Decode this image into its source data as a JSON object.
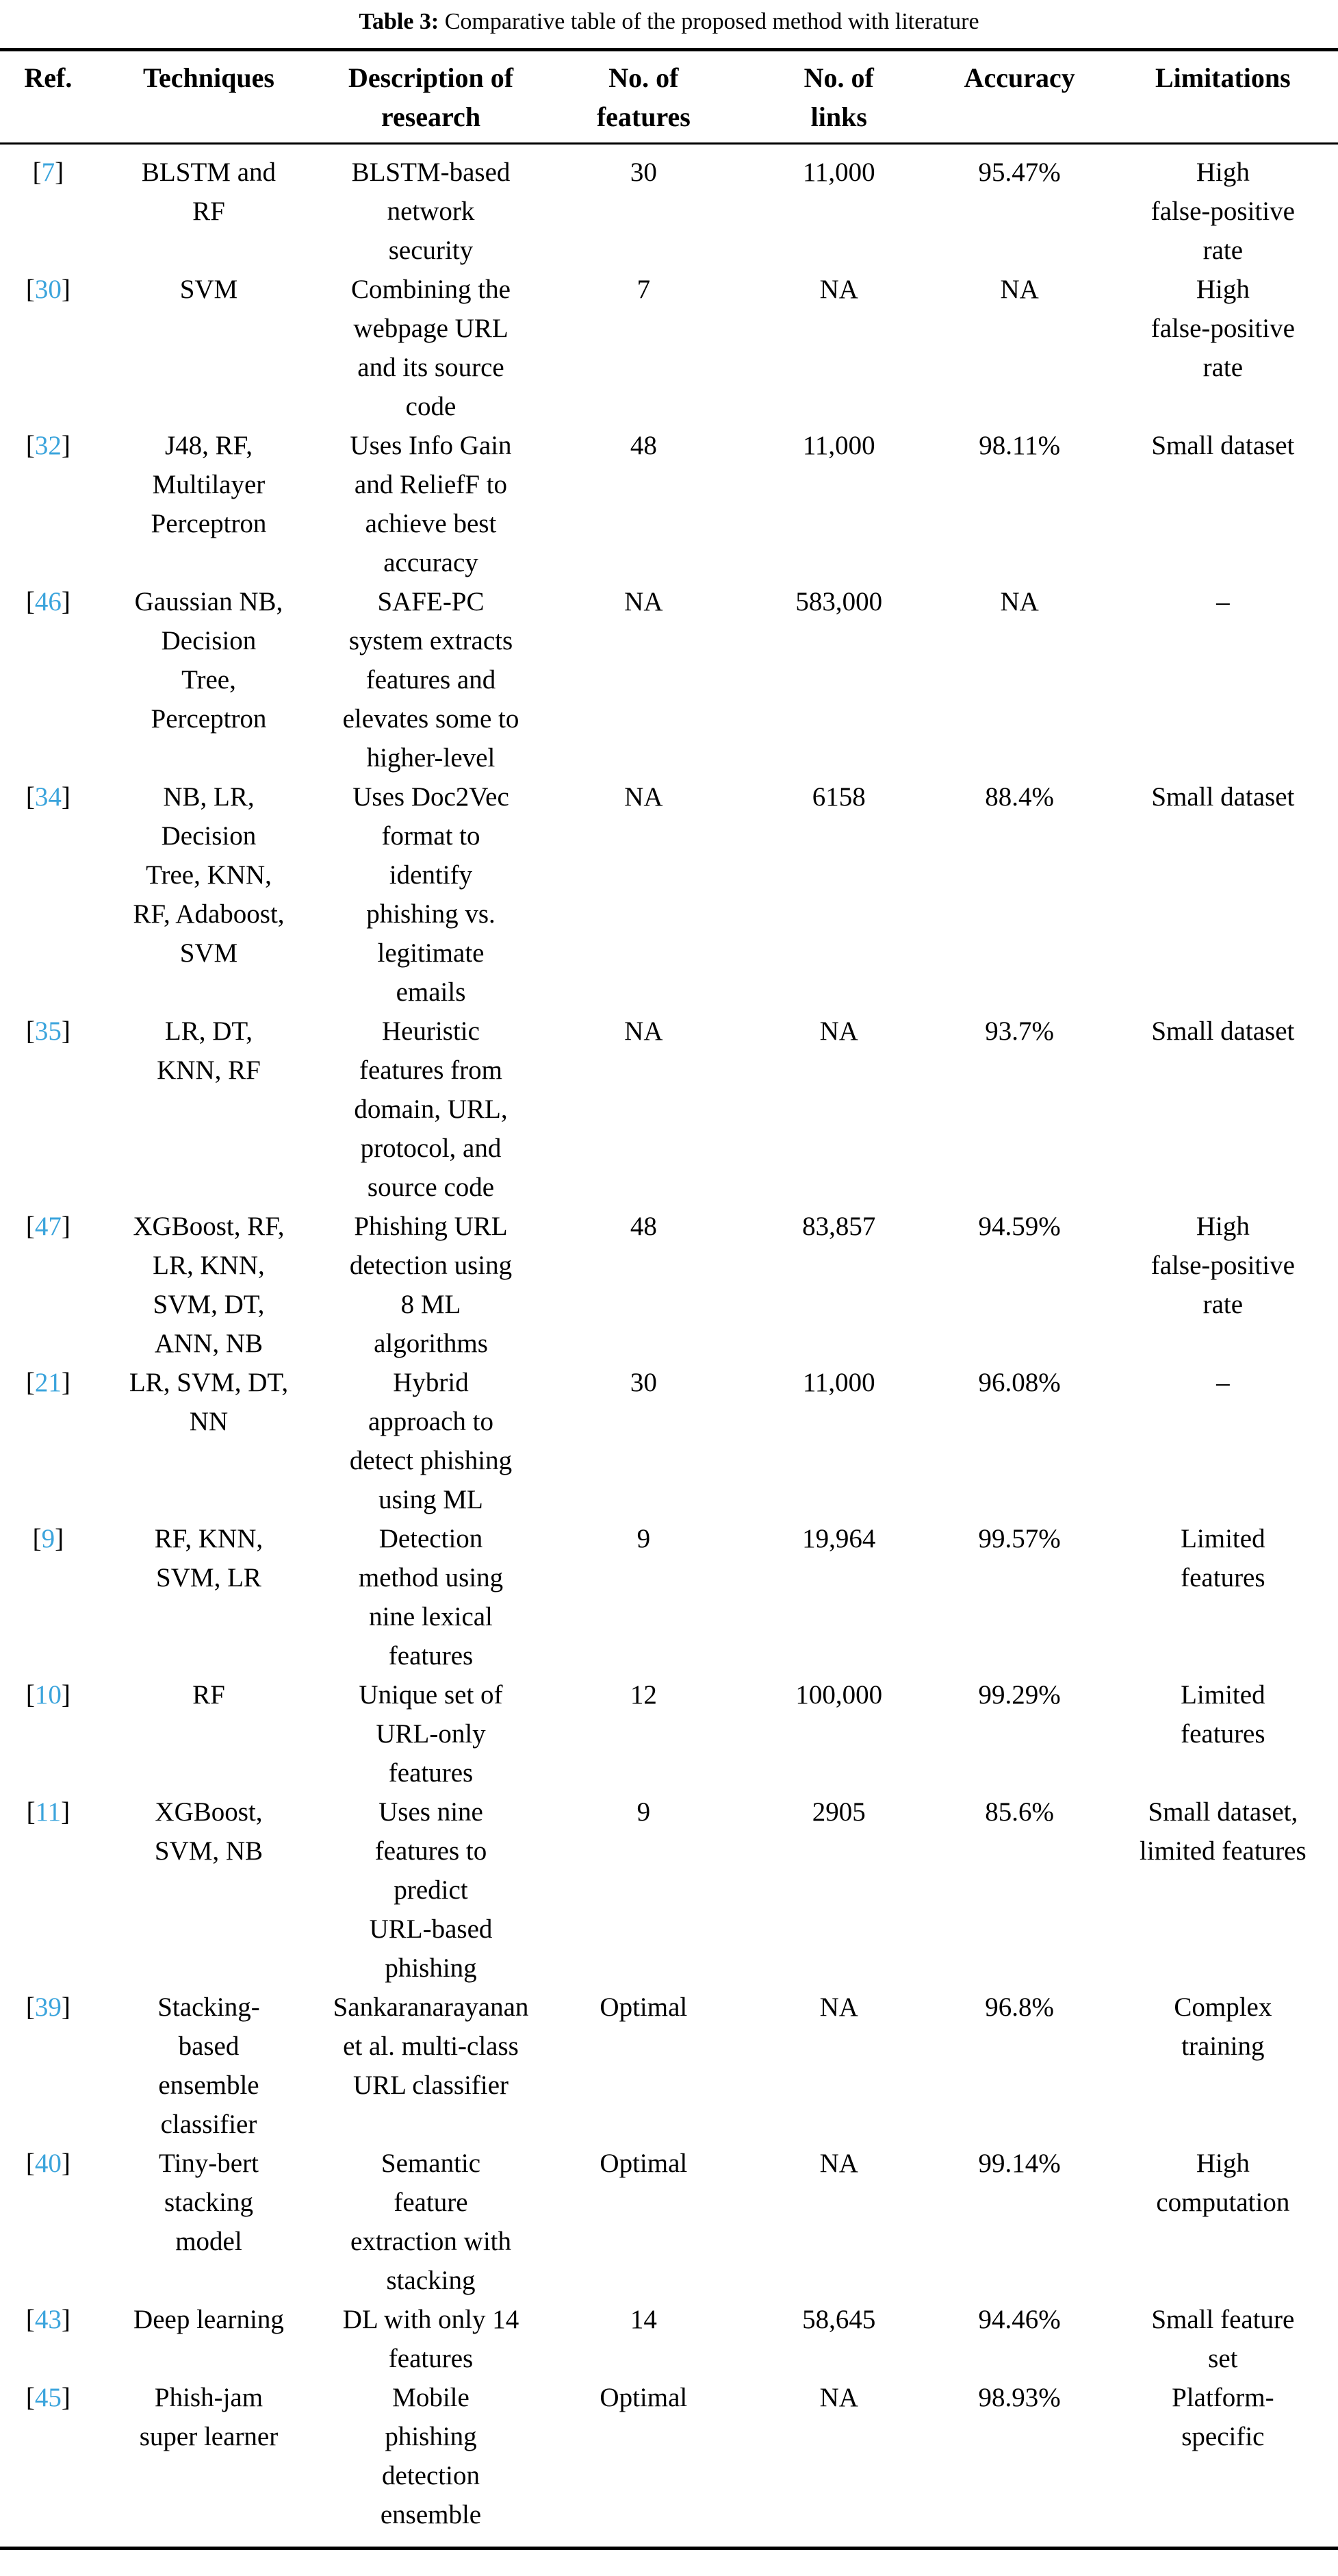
{
  "caption": {
    "label": "Table 3:",
    "text": " Comparative table of the proposed method with literature"
  },
  "colors": {
    "ref_accent": "#3ba4dc"
  },
  "table": {
    "bracket_open": "[",
    "bracket_close": "]",
    "headers": [
      "Ref.",
      "Techniques",
      "Description of\nresearch",
      "No. of\nfeatures",
      "No. of\nlinks",
      "Accuracy",
      "Limitations"
    ],
    "rows": [
      {
        "ref": "7",
        "cells": [
          "BLSTM and\nRF",
          "BLSTM-based\nnetwork\nsecurity",
          "30",
          "11,000",
          "95.47%",
          "High\nfalse-positive\nrate"
        ]
      },
      {
        "ref": "30",
        "cells": [
          "SVM",
          "Combining the\nwebpage URL\nand its source\ncode",
          "7",
          "NA",
          "NA",
          "High\nfalse-positive\nrate"
        ]
      },
      {
        "ref": "32",
        "cells": [
          "J48, RF,\nMultilayer\nPerceptron",
          "Uses Info Gain\nand ReliefF to\nachieve best\naccuracy",
          "48",
          "11,000",
          "98.11%",
          "Small dataset"
        ]
      },
      {
        "ref": "46",
        "cells": [
          "Gaussian NB,\nDecision\nTree,\nPerceptron",
          "SAFE-PC\nsystem extracts\nfeatures and\nelevates some to\nhigher-level",
          "NA",
          "583,000",
          "NA",
          "–"
        ]
      },
      {
        "ref": "34",
        "cells": [
          "NB, LR,\nDecision\nTree, KNN,\nRF, Adaboost,\nSVM",
          "Uses Doc2Vec\nformat to\nidentify\nphishing vs.\nlegitimate\nemails",
          "NA",
          "6158",
          "88.4%",
          "Small dataset"
        ]
      },
      {
        "ref": "35",
        "cells": [
          "LR, DT,\nKNN, RF",
          "Heuristic\nfeatures from\ndomain, URL,\nprotocol, and\nsource code",
          "NA",
          "NA",
          "93.7%",
          "Small dataset"
        ]
      },
      {
        "ref": "47",
        "cells": [
          "XGBoost, RF,\nLR, KNN,\nSVM, DT,\nANN, NB",
          "Phishing URL\ndetection using\n8 ML\nalgorithms",
          "48",
          "83,857",
          "94.59%",
          "High\nfalse-positive\nrate"
        ]
      },
      {
        "ref": "21",
        "cells": [
          "LR, SVM, DT,\nNN",
          "Hybrid\napproach to\ndetect phishing\nusing ML",
          "30",
          "11,000",
          "96.08%",
          "–"
        ]
      },
      {
        "ref": "9",
        "cells": [
          "RF, KNN,\nSVM, LR",
          "Detection\nmethod using\nnine lexical\nfeatures",
          "9",
          "19,964",
          "99.57%",
          "Limited\nfeatures"
        ]
      },
      {
        "ref": "10",
        "cells": [
          "RF",
          "Unique set of\nURL-only\nfeatures",
          "12",
          "100,000",
          "99.29%",
          "Limited\nfeatures"
        ]
      },
      {
        "ref": "11",
        "cells": [
          "XGBoost,\nSVM, NB",
          "Uses nine\nfeatures to\npredict\nURL-based\nphishing",
          "9",
          "2905",
          "85.6%",
          "Small dataset,\nlimited features"
        ]
      },
      {
        "ref": "39",
        "cells": [
          "Stacking-\nbased\nensemble\nclassifier",
          "Sankaranarayanan\net al. multi-class\nURL classifier",
          "Optimal",
          "NA",
          "96.8%",
          "Complex\ntraining"
        ]
      },
      {
        "ref": "40",
        "cells": [
          "Tiny-bert\nstacking\nmodel",
          "Semantic\nfeature\nextraction with\nstacking",
          "Optimal",
          "NA",
          "99.14%",
          "High\ncomputation"
        ]
      },
      {
        "ref": "43",
        "cells": [
          "Deep learning",
          "DL with only 14\nfeatures",
          "14",
          "58,645",
          "94.46%",
          "Small feature\nset"
        ]
      },
      {
        "ref": "45",
        "cells": [
          "Phish-jam\nsuper learner",
          "Mobile\nphishing\ndetection\nensemble",
          "Optimal",
          "NA",
          "98.93%",
          "Platform-\nspecific"
        ]
      }
    ]
  }
}
